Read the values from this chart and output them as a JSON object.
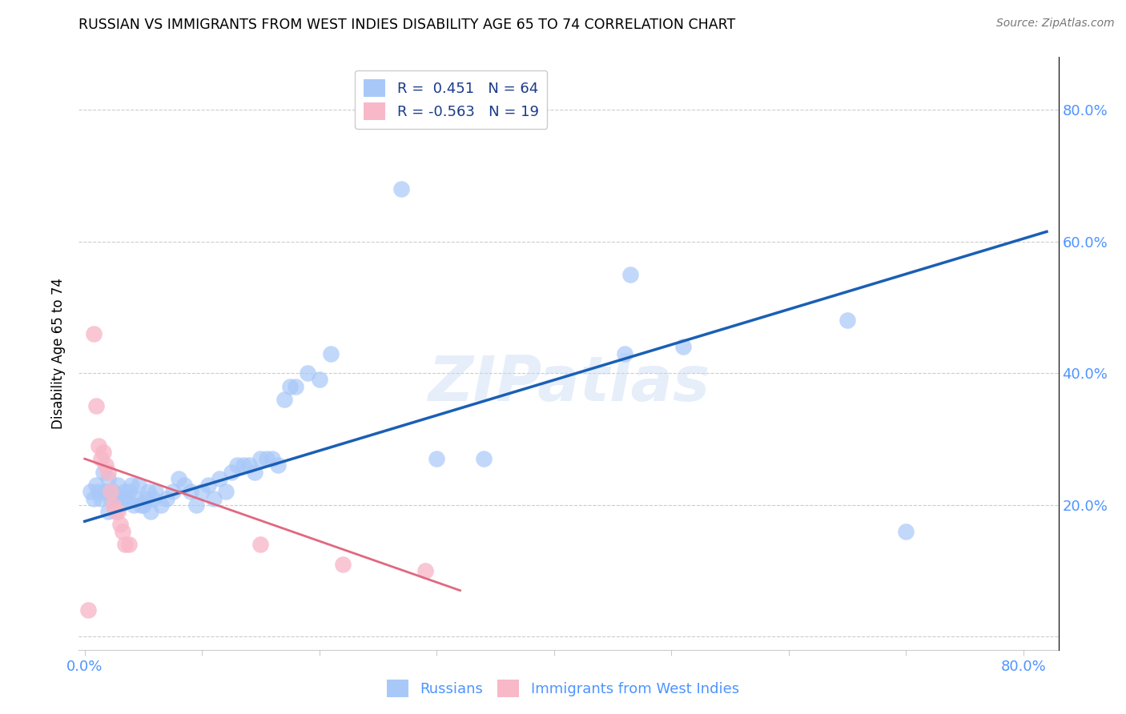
{
  "title": "RUSSIAN VS IMMIGRANTS FROM WEST INDIES DISABILITY AGE 65 TO 74 CORRELATION CHART",
  "source": "Source: ZipAtlas.com",
  "tick_color": "#4d94ff",
  "ylabel": "Disability Age 65 to 74",
  "xlim": [
    -0.005,
    0.83
  ],
  "ylim": [
    -0.02,
    0.88
  ],
  "r_blue": 0.451,
  "n_blue": 64,
  "r_pink": -0.563,
  "n_pink": 19,
  "blue_color": "#a8c8f8",
  "pink_color": "#f8b8c8",
  "blue_line_color": "#1a5fb4",
  "pink_line_color": "#e06880",
  "watermark": "ZIPatlas",
  "legend_label_blue": "Russians",
  "legend_label_pink": "Immigrants from West Indies",
  "blue_scatter": [
    [
      0.005,
      0.22
    ],
    [
      0.008,
      0.21
    ],
    [
      0.01,
      0.23
    ],
    [
      0.012,
      0.22
    ],
    [
      0.014,
      0.21
    ],
    [
      0.016,
      0.25
    ],
    [
      0.018,
      0.22
    ],
    [
      0.02,
      0.24
    ],
    [
      0.022,
      0.21
    ],
    [
      0.024,
      0.22
    ],
    [
      0.026,
      0.2
    ],
    [
      0.028,
      0.23
    ],
    [
      0.03,
      0.2
    ],
    [
      0.032,
      0.21
    ],
    [
      0.034,
      0.22
    ],
    [
      0.036,
      0.21
    ],
    [
      0.038,
      0.22
    ],
    [
      0.04,
      0.23
    ],
    [
      0.042,
      0.2
    ],
    [
      0.044,
      0.21
    ],
    [
      0.046,
      0.23
    ],
    [
      0.048,
      0.2
    ],
    [
      0.05,
      0.2
    ],
    [
      0.052,
      0.21
    ],
    [
      0.054,
      0.22
    ],
    [
      0.056,
      0.19
    ],
    [
      0.058,
      0.21
    ],
    [
      0.06,
      0.22
    ],
    [
      0.065,
      0.2
    ],
    [
      0.07,
      0.21
    ],
    [
      0.075,
      0.22
    ],
    [
      0.08,
      0.24
    ],
    [
      0.085,
      0.23
    ],
    [
      0.09,
      0.22
    ],
    [
      0.095,
      0.2
    ],
    [
      0.1,
      0.22
    ],
    [
      0.105,
      0.23
    ],
    [
      0.11,
      0.21
    ],
    [
      0.115,
      0.24
    ],
    [
      0.12,
      0.22
    ],
    [
      0.125,
      0.25
    ],
    [
      0.13,
      0.26
    ],
    [
      0.135,
      0.26
    ],
    [
      0.14,
      0.26
    ],
    [
      0.145,
      0.25
    ],
    [
      0.15,
      0.27
    ],
    [
      0.155,
      0.27
    ],
    [
      0.16,
      0.27
    ],
    [
      0.165,
      0.26
    ],
    [
      0.17,
      0.36
    ],
    [
      0.175,
      0.38
    ],
    [
      0.18,
      0.38
    ],
    [
      0.19,
      0.4
    ],
    [
      0.2,
      0.39
    ],
    [
      0.21,
      0.43
    ],
    [
      0.27,
      0.68
    ],
    [
      0.3,
      0.27
    ],
    [
      0.34,
      0.27
    ],
    [
      0.46,
      0.43
    ],
    [
      0.465,
      0.55
    ],
    [
      0.51,
      0.44
    ],
    [
      0.65,
      0.48
    ],
    [
      0.7,
      0.16
    ],
    [
      0.02,
      0.19
    ]
  ],
  "pink_scatter": [
    [
      0.003,
      0.04
    ],
    [
      0.008,
      0.46
    ],
    [
      0.01,
      0.35
    ],
    [
      0.012,
      0.29
    ],
    [
      0.014,
      0.27
    ],
    [
      0.016,
      0.28
    ],
    [
      0.018,
      0.26
    ],
    [
      0.02,
      0.25
    ],
    [
      0.022,
      0.22
    ],
    [
      0.024,
      0.2
    ],
    [
      0.026,
      0.19
    ],
    [
      0.028,
      0.19
    ],
    [
      0.03,
      0.17
    ],
    [
      0.032,
      0.16
    ],
    [
      0.034,
      0.14
    ],
    [
      0.038,
      0.14
    ],
    [
      0.15,
      0.14
    ],
    [
      0.22,
      0.11
    ],
    [
      0.29,
      0.1
    ]
  ],
  "blue_trend_x": [
    0.0,
    0.82
  ],
  "blue_trend_y": [
    0.175,
    0.615
  ],
  "pink_trend_x": [
    0.0,
    0.32
  ],
  "pink_trend_y": [
    0.27,
    0.07
  ]
}
